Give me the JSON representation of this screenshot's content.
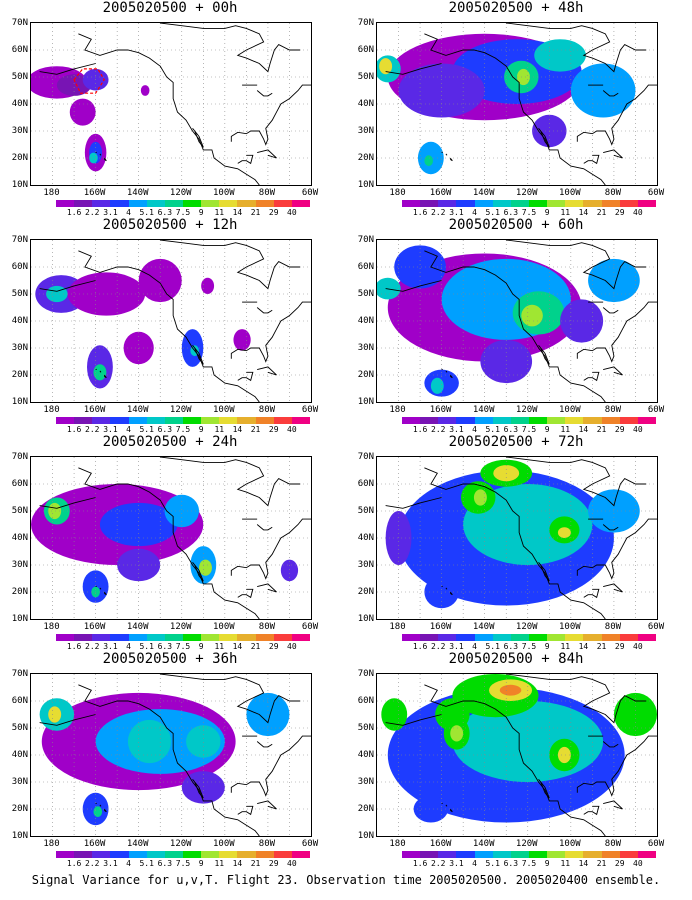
{
  "caption": "Signal Variance for u,v,T. Flight 23. Observation time 2005020500. 2005020400 ensemble.",
  "y_ticks": [
    "70N",
    "60N",
    "50N",
    "40N",
    "30N",
    "20N",
    "10N"
  ],
  "x_ticks": [
    "180",
    "160W",
    "140W",
    "120W",
    "100W",
    "80W",
    "60W"
  ],
  "colorbar": {
    "labels": [
      "1.6",
      "2.2",
      "3.1",
      "4",
      "5.1",
      "6.3",
      "7.5",
      "9",
      "11",
      "14",
      "21",
      "29",
      "40"
    ],
    "colors": [
      "#a000c8",
      "#7814b4",
      "#5a28e6",
      "#1e3cff",
      "#00a0ff",
      "#00c8c8",
      "#00d28c",
      "#00dc00",
      "#a0e632",
      "#e6dc32",
      "#e6af2d",
      "#f08228",
      "#fa3c3c",
      "#f00082"
    ]
  },
  "panels": [
    {
      "title": "2005020500 + 00h",
      "level": 0,
      "blobs": [
        [
          -178,
          48,
          14,
          6,
          "#a000c8"
        ],
        [
          -170,
          47,
          8,
          4,
          "#7814b4"
        ],
        [
          -160,
          49,
          6,
          4,
          "#5a28e6"
        ],
        [
          -160,
          22,
          5,
          7,
          "#a000c8"
        ],
        [
          -160,
          22,
          3,
          4,
          "#1e3cff"
        ],
        [
          -161,
          20,
          2,
          2,
          "#00c8c8"
        ],
        [
          -137,
          45,
          2,
          2,
          "#a000c8"
        ],
        [
          -166,
          37,
          6,
          5,
          "#a000c8"
        ]
      ],
      "target": [
        -162,
        49
      ]
    },
    {
      "title": "2005020500 + 48h",
      "level": 0,
      "blobs": [
        [
          -140,
          50,
          45,
          16,
          "#a000c8"
        ],
        [
          -125,
          52,
          30,
          12,
          "#1e3cff"
        ],
        [
          -160,
          45,
          20,
          10,
          "#5a28e6"
        ],
        [
          -185,
          53,
          6,
          5,
          "#00c8c8"
        ],
        [
          -186,
          54,
          3,
          3,
          "#e6dc32"
        ],
        [
          -123,
          50,
          8,
          6,
          "#00d28c"
        ],
        [
          -122,
          50,
          3,
          3,
          "#a0e632"
        ],
        [
          -105,
          58,
          12,
          6,
          "#00c8c8"
        ],
        [
          -165,
          20,
          6,
          6,
          "#00a0ff"
        ],
        [
          -166,
          19,
          2,
          2,
          "#00d28c"
        ],
        [
          -85,
          45,
          15,
          10,
          "#00a0ff"
        ],
        [
          -110,
          30,
          8,
          6,
          "#5a28e6"
        ]
      ]
    },
    {
      "title": "2005020500 + 12h",
      "level": 0,
      "blobs": [
        [
          -176,
          50,
          12,
          7,
          "#5a28e6"
        ],
        [
          -178,
          50,
          5,
          3,
          "#00c8c8"
        ],
        [
          -155,
          50,
          18,
          8,
          "#a000c8"
        ],
        [
          -130,
          55,
          10,
          8,
          "#a000c8"
        ],
        [
          -158,
          23,
          6,
          8,
          "#5a28e6"
        ],
        [
          -158,
          21,
          3,
          3,
          "#00d28c"
        ],
        [
          -115,
          30,
          5,
          7,
          "#1e3cff"
        ],
        [
          -114,
          29,
          2,
          2,
          "#00c8c8"
        ],
        [
          -140,
          30,
          7,
          6,
          "#a000c8"
        ],
        [
          -92,
          33,
          4,
          4,
          "#a000c8"
        ],
        [
          -108,
          53,
          3,
          3,
          "#a000c8"
        ]
      ]
    },
    {
      "title": "2005020500 + 60h",
      "level": 0,
      "blobs": [
        [
          -140,
          45,
          45,
          20,
          "#a000c8"
        ],
        [
          -130,
          48,
          30,
          15,
          "#00a0ff"
        ],
        [
          -115,
          43,
          12,
          8,
          "#00d28c"
        ],
        [
          -118,
          42,
          5,
          4,
          "#a0e632"
        ],
        [
          -170,
          60,
          12,
          8,
          "#1e3cff"
        ],
        [
          -185,
          52,
          6,
          4,
          "#00c8c8"
        ],
        [
          -160,
          17,
          8,
          5,
          "#1e3cff"
        ],
        [
          -162,
          16,
          3,
          3,
          "#00c8c8"
        ],
        [
          -95,
          40,
          10,
          8,
          "#5a28e6"
        ],
        [
          -80,
          55,
          12,
          8,
          "#00a0ff"
        ],
        [
          -130,
          25,
          12,
          8,
          "#5a28e6"
        ]
      ]
    },
    {
      "title": "2005020500 + 24h",
      "level": 0,
      "blobs": [
        [
          -150,
          45,
          40,
          15,
          "#a000c8"
        ],
        [
          -178,
          50,
          6,
          5,
          "#00d28c"
        ],
        [
          -179,
          50,
          3,
          3,
          "#a0e632"
        ],
        [
          -140,
          45,
          18,
          8,
          "#1e3cff"
        ],
        [
          -120,
          50,
          8,
          6,
          "#00a0ff"
        ],
        [
          -110,
          30,
          6,
          7,
          "#00a0ff"
        ],
        [
          -109,
          29,
          3,
          3,
          "#a0e632"
        ],
        [
          -160,
          22,
          6,
          6,
          "#1e3cff"
        ],
        [
          -160,
          20,
          2,
          2,
          "#00d28c"
        ],
        [
          -70,
          28,
          4,
          4,
          "#5a28e6"
        ],
        [
          -140,
          30,
          10,
          6,
          "#5a28e6"
        ]
      ]
    },
    {
      "title": "2005020500 + 72h",
      "level": 0,
      "blobs": [
        [
          -130,
          40,
          50,
          25,
          "#1e3cff"
        ],
        [
          -120,
          45,
          30,
          15,
          "#00c8c8"
        ],
        [
          -143,
          55,
          8,
          6,
          "#00dc00"
        ],
        [
          -142,
          55,
          3,
          3,
          "#a0e632"
        ],
        [
          -103,
          43,
          7,
          5,
          "#00dc00"
        ],
        [
          -103,
          42,
          3,
          2,
          "#e6dc32"
        ],
        [
          -130,
          64,
          12,
          5,
          "#00dc00"
        ],
        [
          -130,
          64,
          6,
          3,
          "#e6dc32"
        ],
        [
          -160,
          20,
          8,
          6,
          "#1e3cff"
        ],
        [
          -80,
          50,
          12,
          8,
          "#00a0ff"
        ],
        [
          -180,
          40,
          6,
          10,
          "#5a28e6"
        ]
      ]
    },
    {
      "title": "2005020500 + 36h",
      "level": 0,
      "blobs": [
        [
          -140,
          45,
          45,
          18,
          "#a000c8"
        ],
        [
          -130,
          45,
          30,
          12,
          "#00a0ff"
        ],
        [
          -178,
          55,
          8,
          6,
          "#00c8c8"
        ],
        [
          -179,
          55,
          3,
          3,
          "#e6dc32"
        ],
        [
          -160,
          20,
          6,
          6,
          "#1e3cff"
        ],
        [
          -159,
          19,
          2,
          2,
          "#00d28c"
        ],
        [
          -135,
          45,
          10,
          8,
          "#00c8c8"
        ],
        [
          -110,
          45,
          8,
          6,
          "#00c8c8"
        ],
        [
          -80,
          55,
          10,
          8,
          "#00a0ff"
        ],
        [
          -110,
          28,
          10,
          6,
          "#5a28e6"
        ],
        [
          -172,
          40,
          2,
          2,
          "#a000c8"
        ]
      ]
    },
    {
      "title": "2005020500 + 84h",
      "level": 0,
      "blobs": [
        [
          -130,
          40,
          55,
          25,
          "#1e3cff"
        ],
        [
          -120,
          45,
          35,
          15,
          "#00c8c8"
        ],
        [
          -135,
          62,
          20,
          8,
          "#00dc00"
        ],
        [
          -128,
          64,
          10,
          4,
          "#e6dc32"
        ],
        [
          -128,
          64,
          5,
          2,
          "#f08228"
        ],
        [
          -155,
          55,
          8,
          6,
          "#00dc00"
        ],
        [
          -153,
          48,
          6,
          6,
          "#00dc00"
        ],
        [
          -153,
          48,
          3,
          3,
          "#a0e632"
        ],
        [
          -103,
          40,
          7,
          6,
          "#00dc00"
        ],
        [
          -103,
          40,
          3,
          3,
          "#e6dc32"
        ],
        [
          -70,
          55,
          10,
          8,
          "#00dc00"
        ],
        [
          -165,
          20,
          8,
          5,
          "#1e3cff"
        ],
        [
          -182,
          55,
          6,
          6,
          "#00dc00"
        ]
      ]
    }
  ]
}
